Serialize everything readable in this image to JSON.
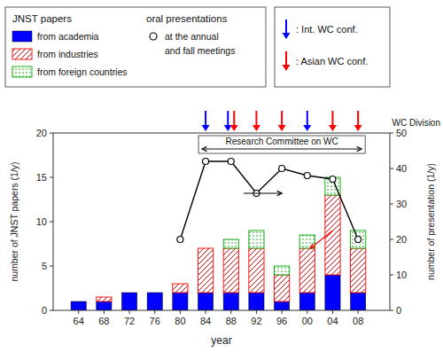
{
  "chart_data": {
    "type": "bar",
    "stacked": true,
    "grid": false,
    "legend": "top",
    "x": [
      64,
      68,
      72,
      76,
      80,
      84,
      88,
      92,
      96,
      100,
      104,
      108
    ],
    "xlim": [
      60,
      113
    ],
    "xticks": [
      64,
      68,
      72,
      76,
      80,
      84,
      88,
      92,
      96,
      {
        "value": 100,
        "label": "00"
      },
      {
        "value": 104,
        "label": "04"
      },
      {
        "value": 108,
        "label": "08"
      }
    ],
    "ylim": [
      0,
      20
    ],
    "yticks": [
      0,
      5,
      10,
      15,
      20
    ],
    "y2lim": [
      0,
      50
    ],
    "y2ticks": [
      0,
      10,
      20,
      30,
      40,
      50
    ],
    "x_label": "year",
    "y_label": "number of JNST papers (1/y)",
    "y2_label": "number of presentation (1/y)",
    "legend_title": "JNST papers",
    "series": [
      {
        "name": "from academia",
        "color": "#0000FF",
        "values": [
          1,
          1,
          2,
          2,
          2,
          2,
          2,
          2,
          1,
          2,
          4,
          2
        ]
      },
      {
        "name": "from industries",
        "color": "#FF0000",
        "values": [
          0,
          0.5,
          0,
          0,
          1,
          5,
          5,
          5,
          3,
          5,
          9,
          5
        ]
      },
      {
        "name": "from foreign countries",
        "color": "#00AA00",
        "values": [
          0,
          0,
          0,
          0,
          0,
          0,
          1,
          2,
          1,
          1.5,
          2,
          2
        ]
      },
      {
        "name": "oral presentations",
        "type": "line",
        "axis": "y2",
        "color": "#000000",
        "marker": "circle",
        "legend_text": [
          "at the annual",
          "and fall meetings"
        ],
        "values": [
          null,
          null,
          null,
          null,
          20,
          42,
          42,
          33,
          40,
          38,
          37,
          20
        ]
      }
    ],
    "annotations": [
      {
        "type": "arrow",
        "text": ": Int. WC conf.",
        "color": "#0000FF",
        "x": [
          84,
          88,
          100
        ]
      },
      {
        "type": "arrow",
        "text": ": Asian WC conf.",
        "color": "#FF0000",
        "x": [
          88,
          92,
          96,
          104,
          108
        ]
      },
      {
        "type": "span",
        "text": "Research Committee on WC",
        "x": [
          84,
          108
        ]
      },
      {
        "type": "label",
        "text": "WC Division"
      },
      {
        "type": "pointer",
        "color": "#000000",
        "axis": "y2",
        "x": [
          90,
          96
        ],
        "y": [
          33,
          33
        ]
      },
      {
        "type": "pointer",
        "color": "#FF0000",
        "x": [
          104,
          100.5
        ],
        "y": [
          9,
          7
        ]
      }
    ]
  }
}
